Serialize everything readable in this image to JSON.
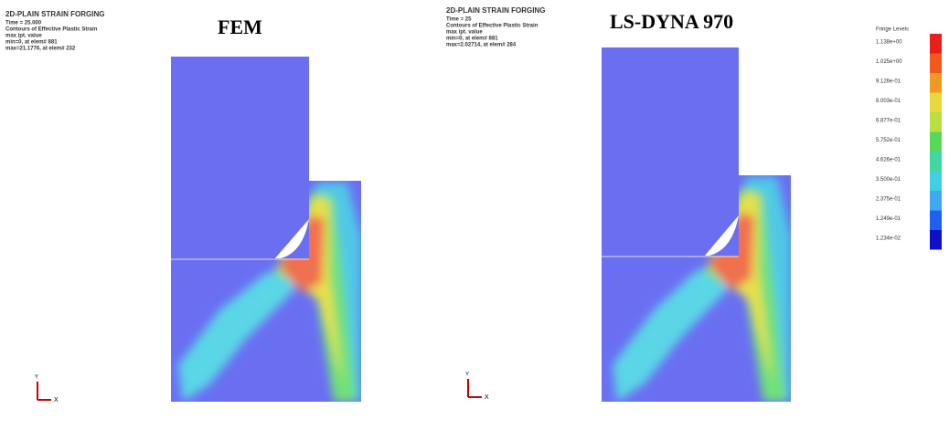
{
  "panels": [
    {
      "title": "FEM",
      "header": [
        "2D-PLAIN STRAIN FORGING",
        "Time =    25.000",
        "Contours of Effective Plastic Strain",
        "max ipt. value",
        "min=0, at elem# 881",
        "max=21.1776, at elem# 232"
      ],
      "axis_x": "X",
      "axis_y": "Y"
    },
    {
      "title": "LS-DYNA 970",
      "header": [
        "2D-PLAIN STRAIN FORGING",
        "Time =      25",
        "Contours of Effective Plastic Strain",
        "max ipt. value",
        "min=0, at elem# 881",
        "max=2.02714, at elem# 284"
      ],
      "axis_x": "X",
      "axis_y": "Y"
    }
  ],
  "legend": {
    "title": "Fringe Levels",
    "levels": [
      "1.138e+00",
      "1.025e+00",
      "9.126e-01",
      "8.003e-01",
      "6.877e-01",
      "5.752e-01",
      "4.626e-01",
      "3.500e-01",
      "2.375e-01",
      "1.249e-01",
      "1.234e-02"
    ]
  }
}
